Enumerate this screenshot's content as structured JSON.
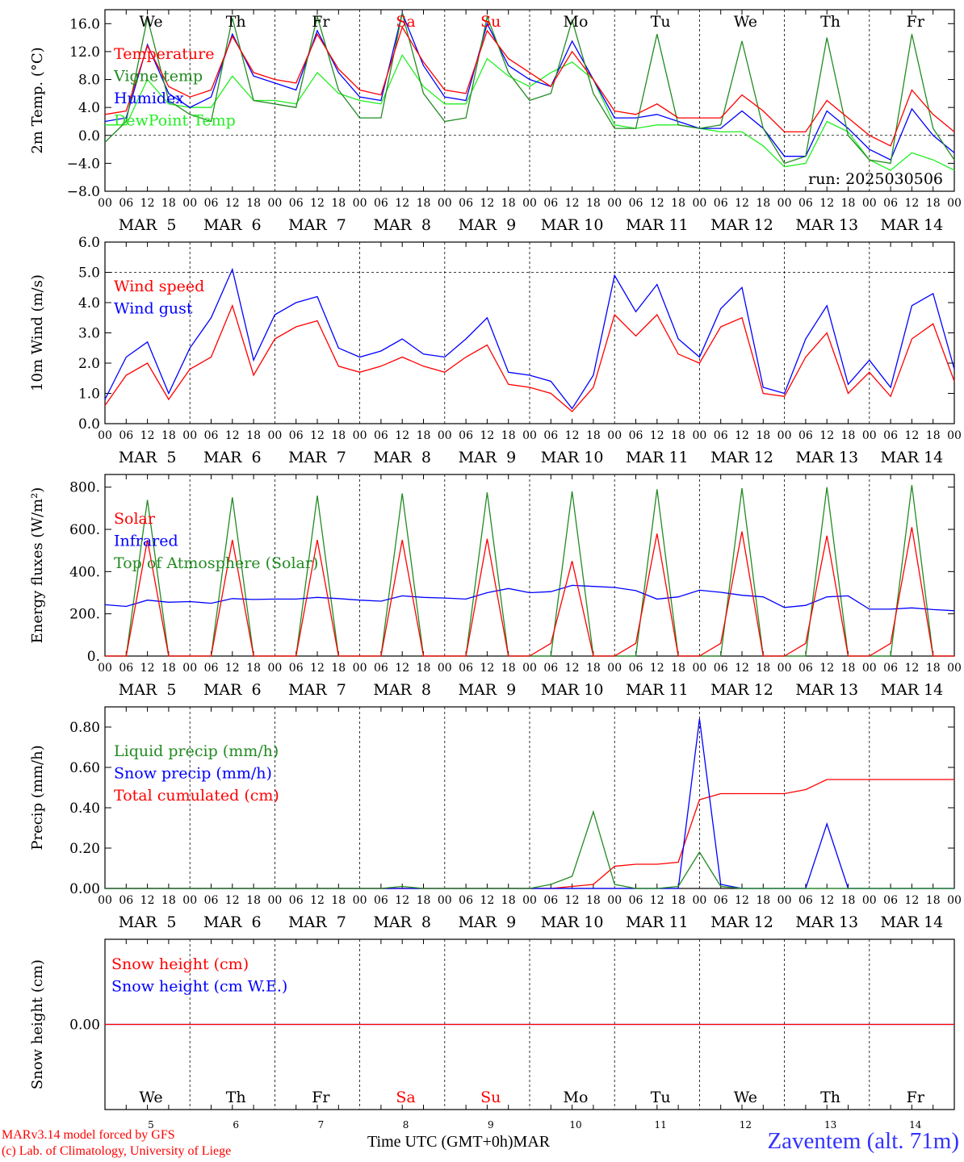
{
  "colors": {
    "red": "#ff0000",
    "darkgreen": "#228b22",
    "blue": "#0000ff",
    "lightgreen": "#22ee22",
    "grid": "#000000"
  },
  "footer": {
    "credit1": "MARv3.14 model forced by GFS",
    "credit2": "(c) Lab. of Climatology, University of Liege",
    "xaxis_title": "Time UTC (GMT+0h)MAR",
    "station": "Zaventem (alt. 71m)"
  },
  "run_label": "run: 2025030506",
  "days": [
    {
      "abbr": "We",
      "num": "5",
      "date": "MAR  5",
      "weekend": false
    },
    {
      "abbr": "Th",
      "num": "6",
      "date": "MAR  6",
      "weekend": false
    },
    {
      "abbr": "Fr",
      "num": "7",
      "date": "MAR  7",
      "weekend": false
    },
    {
      "abbr": "Sa",
      "num": "8",
      "date": "MAR  8",
      "weekend": true
    },
    {
      "abbr": "Su",
      "num": "9",
      "date": "MAR  9",
      "weekend": true
    },
    {
      "abbr": "Mo",
      "num": "10",
      "date": "MAR 10",
      "weekend": false
    },
    {
      "abbr": "Tu",
      "num": "11",
      "date": "MAR 11",
      "weekend": false
    },
    {
      "abbr": "We",
      "num": "12",
      "date": "MAR 12",
      "weekend": false
    },
    {
      "abbr": "Th",
      "num": "13",
      "date": "MAR 13",
      "weekend": false
    },
    {
      "abbr": "Fr",
      "num": "14",
      "date": "MAR 14",
      "weekend": false
    }
  ],
  "hour_ticks": [
    "00",
    "06",
    "12",
    "18"
  ],
  "chart_data": [
    {
      "type": "line",
      "ylabel": "2m Temp. (°C)",
      "ylim": [
        -8,
        18
      ],
      "yticks": [
        16,
        12,
        8,
        4,
        0,
        -4,
        -8
      ],
      "yticklabels": [
        "16.0",
        "12.0",
        "8.0",
        "4.0",
        "0.0",
        "−4.0",
        "−8.0"
      ],
      "x_hours": [
        0,
        6,
        12,
        18,
        24,
        30,
        36,
        42,
        48,
        54,
        60,
        66,
        72,
        78,
        84,
        90,
        96,
        102,
        108,
        114,
        120,
        126,
        132,
        138,
        144,
        150,
        156,
        162,
        168,
        174,
        180,
        186,
        192,
        198,
        204,
        210,
        216,
        222,
        228,
        234,
        240
      ],
      "series": [
        {
          "name": "Temperature",
          "color": "#ff0000",
          "values": [
            3.0,
            3.5,
            12.8,
            7.0,
            5.5,
            6.5,
            14.2,
            9.0,
            8.0,
            7.5,
            14.5,
            9.5,
            6.5,
            5.8,
            15.5,
            10.5,
            6.5,
            6.0,
            15.0,
            11.0,
            9.0,
            7.0,
            12.0,
            8.0,
            3.5,
            3.0,
            4.5,
            2.5,
            2.5,
            2.5,
            5.8,
            3.5,
            0.5,
            0.5,
            5.0,
            2.5,
            0.0,
            -1.5,
            6.5,
            3.0,
            0.5
          ]
        },
        {
          "name": "Vigne temp",
          "color": "#228b22",
          "values": [
            -1.0,
            2.0,
            16.8,
            5.0,
            3.0,
            2.0,
            16.8,
            5.0,
            4.5,
            4.0,
            17.0,
            6.5,
            2.5,
            2.5,
            17.5,
            6.0,
            2.0,
            2.5,
            17.0,
            9.0,
            5.0,
            6.0,
            16.5,
            6.0,
            1.0,
            1.0,
            14.5,
            1.5,
            1.0,
            1.5,
            13.5,
            1.0,
            -4.0,
            -3.0,
            14.0,
            0.0,
            -3.5,
            -4.0,
            14.5,
            1.0,
            -3.5
          ]
        },
        {
          "name": "Humidex",
          "color": "#0000ff",
          "values": [
            2.0,
            2.5,
            13.0,
            6.0,
            4.0,
            5.5,
            14.5,
            8.5,
            7.5,
            6.5,
            15.0,
            9.0,
            5.5,
            5.0,
            17.5,
            10.0,
            5.5,
            5.0,
            16.0,
            10.0,
            8.0,
            7.0,
            13.5,
            8.0,
            2.5,
            2.5,
            3.0,
            2.0,
            1.0,
            1.0,
            3.5,
            1.0,
            -3.0,
            -3.0,
            3.5,
            1.0,
            -2.0,
            -3.5,
            3.8,
            0.0,
            -2.5
          ]
        },
        {
          "name": "DewPoint Temp",
          "color": "#22ee22",
          "values": [
            1.5,
            1.5,
            8.0,
            4.5,
            4.0,
            4.0,
            8.5,
            5.0,
            5.0,
            4.5,
            9.0,
            6.0,
            5.0,
            4.5,
            11.5,
            7.0,
            4.5,
            4.5,
            11.0,
            8.5,
            7.0,
            9.0,
            10.5,
            8.0,
            1.5,
            1.0,
            1.5,
            1.5,
            1.0,
            0.5,
            0.5,
            -1.5,
            -4.5,
            -4.0,
            2.0,
            0.5,
            -3.5,
            -5.0,
            -2.5,
            -3.5,
            -5.0
          ]
        }
      ]
    },
    {
      "type": "line",
      "ylabel": "10m Wind (m/s)",
      "ylim": [
        0,
        6
      ],
      "yticks": [
        6,
        5,
        4,
        3,
        2,
        1,
        0
      ],
      "yticklabels": [
        "6.0",
        "5.0",
        "4.0",
        "3.0",
        "2.0",
        "1.0",
        "0.0"
      ],
      "x_hours": [
        0,
        6,
        12,
        18,
        24,
        30,
        36,
        42,
        48,
        54,
        60,
        66,
        72,
        78,
        84,
        90,
        96,
        102,
        108,
        114,
        120,
        126,
        132,
        138,
        144,
        150,
        156,
        162,
        168,
        174,
        180,
        186,
        192,
        198,
        204,
        210,
        216,
        222,
        228,
        234,
        240
      ],
      "series": [
        {
          "name": "Wind speed",
          "color": "#ff0000",
          "values": [
            0.6,
            1.6,
            2.0,
            0.8,
            1.8,
            2.2,
            3.9,
            1.6,
            2.8,
            3.2,
            3.4,
            1.9,
            1.7,
            1.9,
            2.2,
            1.9,
            1.7,
            2.2,
            2.6,
            1.3,
            1.2,
            1.0,
            0.4,
            1.2,
            3.6,
            2.9,
            3.6,
            2.3,
            2.0,
            3.2,
            3.5,
            1.0,
            0.9,
            2.2,
            3.0,
            1.0,
            1.7,
            0.9,
            2.8,
            3.3,
            1.4
          ]
        },
        {
          "name": "Wind gust",
          "color": "#0000ff",
          "values": [
            0.8,
            2.2,
            2.7,
            1.0,
            2.5,
            3.5,
            5.1,
            2.1,
            3.6,
            4.0,
            4.2,
            2.5,
            2.2,
            2.4,
            2.8,
            2.3,
            2.2,
            2.8,
            3.5,
            1.7,
            1.6,
            1.4,
            0.5,
            1.6,
            4.9,
            3.7,
            4.6,
            2.8,
            2.2,
            3.8,
            4.5,
            1.2,
            1.0,
            2.8,
            3.9,
            1.3,
            2.1,
            1.2,
            3.9,
            4.3,
            1.8
          ]
        }
      ]
    },
    {
      "type": "line",
      "ylabel": "Energy fluxes (W/m²)",
      "ylim": [
        0,
        860
      ],
      "yticks": [
        800,
        600,
        400,
        200,
        0
      ],
      "yticklabels": [
        "800.",
        "600.",
        "400.",
        "200.",
        "0."
      ],
      "x_hours": [
        0,
        6,
        12,
        18,
        24,
        30,
        36,
        42,
        48,
        54,
        60,
        66,
        72,
        78,
        84,
        90,
        96,
        102,
        108,
        114,
        120,
        126,
        132,
        138,
        144,
        150,
        156,
        162,
        168,
        174,
        180,
        186,
        192,
        198,
        204,
        210,
        216,
        222,
        228,
        234,
        240
      ],
      "series": [
        {
          "name": "Solar",
          "color": "#ff0000",
          "values": [
            0,
            0,
            550,
            0,
            0,
            0,
            550,
            0,
            0,
            0,
            550,
            0,
            0,
            0,
            550,
            0,
            0,
            0,
            555,
            0,
            0,
            60,
            450,
            0,
            0,
            60,
            580,
            0,
            0,
            60,
            590,
            0,
            0,
            60,
            570,
            0,
            0,
            60,
            610,
            0,
            0
          ]
        },
        {
          "name": "Infrared",
          "color": "#0000ff",
          "values": [
            243,
            235,
            265,
            255,
            258,
            250,
            272,
            268,
            270,
            270,
            278,
            272,
            265,
            260,
            285,
            278,
            275,
            270,
            300,
            320,
            300,
            305,
            335,
            330,
            325,
            310,
            270,
            280,
            312,
            302,
            288,
            280,
            230,
            240,
            280,
            285,
            222,
            222,
            228,
            220,
            215
          ]
        },
        {
          "name": "Top of Atmosphere (Solar)",
          "color": "#228b22",
          "values": [
            0,
            0,
            740,
            0,
            0,
            0,
            752,
            0,
            0,
            0,
            760,
            0,
            0,
            0,
            770,
            0,
            0,
            0,
            775,
            0,
            0,
            0,
            780,
            0,
            0,
            0,
            790,
            0,
            0,
            0,
            795,
            0,
            0,
            0,
            800,
            0,
            0,
            0,
            810,
            0,
            0
          ]
        }
      ]
    },
    {
      "type": "line",
      "ylabel": "Precip (mm/h)",
      "ylim": [
        0,
        0.9
      ],
      "yticks": [
        0.8,
        0.6,
        0.4,
        0.2,
        0
      ],
      "yticklabels": [
        "0.80",
        "0.60",
        "0.40",
        "0.20",
        "0.00"
      ],
      "x_hours": [
        0,
        6,
        12,
        18,
        24,
        30,
        36,
        42,
        48,
        54,
        60,
        66,
        72,
        78,
        84,
        90,
        96,
        102,
        108,
        114,
        120,
        126,
        132,
        138,
        144,
        150,
        156,
        162,
        168,
        174,
        180,
        186,
        192,
        198,
        204,
        210,
        216,
        222,
        228,
        234,
        240
      ],
      "series": [
        {
          "name": "Liquid precip (mm/h)",
          "color": "#228b22",
          "values": [
            0,
            0,
            0,
            0,
            0,
            0,
            0,
            0,
            0,
            0,
            0,
            0,
            0,
            0,
            0.01,
            0,
            0,
            0,
            0,
            0,
            0,
            0.02,
            0.06,
            0.38,
            0.02,
            0,
            0,
            0.01,
            0.18,
            0.01,
            0,
            0,
            0,
            0,
            0,
            0,
            0,
            0,
            0,
            0,
            0
          ]
        },
        {
          "name": "Snow precip (mm/h)",
          "color": "#0000ff",
          "values": [
            0,
            0,
            0,
            0,
            0,
            0,
            0,
            0,
            0,
            0,
            0,
            0,
            0,
            0,
            0,
            0,
            0,
            0,
            0,
            0,
            0,
            0,
            0,
            0,
            0,
            0,
            0,
            0,
            0.84,
            0.02,
            0,
            0,
            0,
            0,
            0.32,
            0,
            0,
            0,
            0,
            0,
            0
          ]
        },
        {
          "name": "Total cumulated (cm)",
          "color": "#ff0000",
          "values": [
            0,
            0,
            0,
            0,
            0,
            0,
            0,
            0,
            0,
            0,
            0,
            0,
            0,
            0,
            0,
            0,
            0,
            0,
            0,
            0,
            0,
            0,
            0.01,
            0.02,
            0.11,
            0.12,
            0.12,
            0.13,
            0.44,
            0.47,
            0.47,
            0.47,
            0.47,
            0.49,
            0.54,
            0.54,
            0.54,
            0.54,
            0.54,
            0.54,
            0.54
          ]
        }
      ]
    },
    {
      "type": "line",
      "ylabel": "Snow height (cm)",
      "ylim": [
        -1,
        1
      ],
      "yticks": [
        0
      ],
      "yticklabels": [
        "0.00"
      ],
      "x_hours": [
        0,
        240
      ],
      "series": [
        {
          "name": "Snow height (cm)",
          "color": "#ff0000",
          "values": [
            0,
            0
          ]
        },
        {
          "name": "Snow height (cm W.E.)",
          "color": "#0000ff",
          "values": [
            0,
            0
          ]
        }
      ]
    }
  ]
}
